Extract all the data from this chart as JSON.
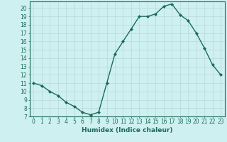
{
  "xlabel": "Humidex (Indice chaleur)",
  "x": [
    0,
    1,
    2,
    3,
    4,
    5,
    6,
    7,
    8,
    9,
    10,
    11,
    12,
    13,
    14,
    15,
    16,
    17,
    18,
    19,
    20,
    21,
    22,
    23
  ],
  "y": [
    11.0,
    10.7,
    10.0,
    9.5,
    8.7,
    8.2,
    7.5,
    7.2,
    7.5,
    11.0,
    14.5,
    16.0,
    17.5,
    19.0,
    19.0,
    19.3,
    20.2,
    20.5,
    19.2,
    18.5,
    17.0,
    15.2,
    13.2,
    12.0
  ],
  "line_color": "#1a6b5a",
  "marker": "D",
  "marker_size": 2.0,
  "bg_color": "#cff0f0",
  "grid_color": "#b8d8d8",
  "tick_color": "#1a6b5a",
  "label_color": "#1a6b5a",
  "ylim": [
    7,
    20.8
  ],
  "xlim": [
    -0.5,
    23.5
  ],
  "yticks": [
    7,
    8,
    9,
    10,
    11,
    12,
    13,
    14,
    15,
    16,
    17,
    18,
    19,
    20
  ],
  "xticks": [
    0,
    1,
    2,
    3,
    4,
    5,
    6,
    7,
    8,
    9,
    10,
    11,
    12,
    13,
    14,
    15,
    16,
    17,
    18,
    19,
    20,
    21,
    22,
    23
  ],
  "xlabel_fontsize": 6.5,
  "tick_fontsize": 5.5,
  "linewidth": 1.0
}
